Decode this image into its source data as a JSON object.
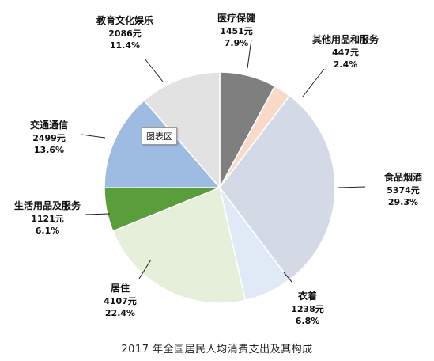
{
  "chart_data": {
    "type": "pie",
    "title": "2017 年全国居民人均消费支出及其构成",
    "unit": "元",
    "tooltip": "图表区",
    "slices": [
      {
        "name": "医疗保健",
        "value": 1451,
        "value_label": "1451元",
        "percent": "7.9%",
        "color": "#7f7f7f"
      },
      {
        "name": "其他用品和服务",
        "value": 447,
        "value_label": "447元",
        "percent": "2.4%",
        "color": "#f8dac9"
      },
      {
        "name": "食品烟酒",
        "value": 5374,
        "value_label": "5374元",
        "percent": "29.3%",
        "color": "#d3dae6"
      },
      {
        "name": "衣着",
        "value": 1238,
        "value_label": "1238元",
        "percent": "6.8%",
        "color": "#dfeaf6"
      },
      {
        "name": "居住",
        "value": 4107,
        "value_label": "4107元",
        "percent": "22.4%",
        "color": "#e5efd9"
      },
      {
        "name": "生活用品及服务",
        "value": 1121,
        "value_label": "1121元",
        "percent": "6.1%",
        "color": "#5a9e3c"
      },
      {
        "name": "交通通信",
        "value": 2499,
        "value_label": "2499元",
        "percent": "13.6%",
        "color": "#9ebbe2"
      },
      {
        "name": "教育文化娱乐",
        "value": 2086,
        "value_label": "2086元",
        "percent": "11.4%",
        "color": "#e2e2e2"
      }
    ]
  }
}
